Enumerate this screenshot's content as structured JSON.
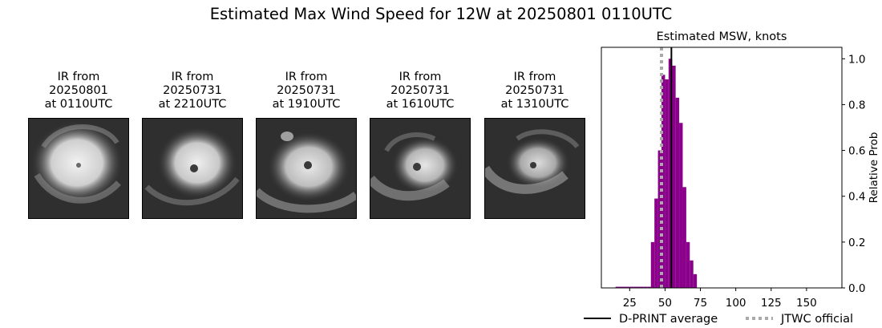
{
  "figure": {
    "title": "Estimated Max Wind Speed for 12W at 20250801 0110UTC"
  },
  "ir_panels": [
    {
      "line1": "IR from",
      "line2": "20250801",
      "line3": "at 0110UTC"
    },
    {
      "line1": "IR from",
      "line2": "20250731",
      "line3": "at 2210UTC"
    },
    {
      "line1": "IR from",
      "line2": "20250731",
      "line3": "at 1910UTC"
    },
    {
      "line1": "IR from",
      "line2": "20250731",
      "line3": "at 1610UTC"
    },
    {
      "line1": "IR from",
      "line2": "20250731",
      "line3": "at 1310UTC"
    }
  ],
  "chart_data": {
    "type": "bar",
    "title": "Estimated MSW, knots",
    "xlabel": "",
    "ylabel": "Relative Prob",
    "xlim": [
      5,
      175
    ],
    "ylim": [
      0,
      1.05
    ],
    "x_ticks": [
      25,
      50,
      75,
      100,
      125,
      150
    ],
    "y_ticks": [
      0.0,
      0.2,
      0.4,
      0.6,
      0.8,
      1.0
    ],
    "y_tick_labels": [
      "0.0",
      "0.2",
      "0.4",
      "0.6",
      "0.8",
      "1.0"
    ],
    "bin_width": 2.5,
    "bar_color": "#8b008b",
    "bins": [
      {
        "x": 15,
        "p": 0.005
      },
      {
        "x": 17.5,
        "p": 0.005
      },
      {
        "x": 20,
        "p": 0.005
      },
      {
        "x": 22.5,
        "p": 0.005
      },
      {
        "x": 25,
        "p": 0.005
      },
      {
        "x": 27.5,
        "p": 0.005
      },
      {
        "x": 30,
        "p": 0.005
      },
      {
        "x": 32.5,
        "p": 0.005
      },
      {
        "x": 35,
        "p": 0.005
      },
      {
        "x": 37.5,
        "p": 0.005
      },
      {
        "x": 40,
        "p": 0.2
      },
      {
        "x": 42.5,
        "p": 0.39
      },
      {
        "x": 45,
        "p": 0.6
      },
      {
        "x": 47.5,
        "p": 0.93
      },
      {
        "x": 50,
        "p": 0.91
      },
      {
        "x": 52.5,
        "p": 1.0
      },
      {
        "x": 55,
        "p": 0.97
      },
      {
        "x": 57.5,
        "p": 0.83
      },
      {
        "x": 60,
        "p": 0.72
      },
      {
        "x": 62.5,
        "p": 0.44
      },
      {
        "x": 65,
        "p": 0.2
      },
      {
        "x": 67.5,
        "p": 0.12
      },
      {
        "x": 70,
        "p": 0.06
      }
    ],
    "dprint_average": 54.5,
    "jtwc_official": 47.5,
    "dprint_color": "#000000",
    "jtwc_color": "#a9a9a9",
    "legend": {
      "placement": "bottom",
      "dprint_label": "D-PRINT average",
      "jtwc_label": "JTWC official"
    }
  }
}
